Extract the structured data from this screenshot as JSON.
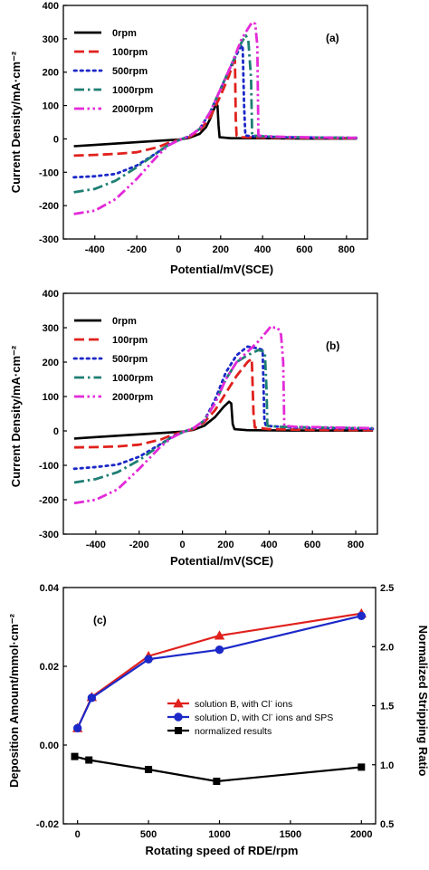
{
  "chart_data": [
    {
      "panel_label": "(a)",
      "type": "line",
      "xlabel": "Potential/mV(SCE)",
      "ylabel": "Current Density/mA·cm⁻²",
      "xlim": [
        -550,
        900
      ],
      "ylim": [
        -300,
        400
      ],
      "xticks": [
        "-400",
        "-200",
        "0",
        "200",
        "400",
        "600",
        "800"
      ],
      "yticks": [
        "-300",
        "-200",
        "-100",
        "0",
        "100",
        "200",
        "300",
        "400"
      ],
      "legend_position": "top-left",
      "series": [
        {
          "name": "0rpm",
          "color": "#000000",
          "dash": "solid",
          "points": [
            [
              -500,
              -22
            ],
            [
              -400,
              -18
            ],
            [
              -300,
              -14
            ],
            [
              -200,
              -10
            ],
            [
              -100,
              -6
            ],
            [
              0,
              -2
            ],
            [
              50,
              3
            ],
            [
              100,
              15
            ],
            [
              130,
              35
            ],
            [
              150,
              60
            ],
            [
              165,
              85
            ],
            [
              178,
              102
            ],
            [
              185,
              100
            ],
            [
              190,
              40
            ],
            [
              195,
              5
            ],
            [
              250,
              2
            ],
            [
              400,
              2
            ],
            [
              600,
              1
            ],
            [
              850,
              1
            ]
          ]
        },
        {
          "name": "100rpm",
          "color": "#e0211d",
          "dash": "long",
          "points": [
            [
              -500,
              -50
            ],
            [
              -400,
              -48
            ],
            [
              -300,
              -45
            ],
            [
              -200,
              -40
            ],
            [
              -100,
              -25
            ],
            [
              -50,
              -12
            ],
            [
              0,
              -3
            ],
            [
              50,
              5
            ],
            [
              100,
              25
            ],
            [
              150,
              65
            ],
            [
              200,
              130
            ],
            [
              240,
              190
            ],
            [
              260,
              230
            ],
            [
              268,
              235
            ],
            [
              272,
              60
            ],
            [
              276,
              10
            ],
            [
              300,
              5
            ],
            [
              500,
              3
            ],
            [
              700,
              2
            ],
            [
              850,
              2
            ]
          ]
        },
        {
          "name": "500rpm",
          "color": "#1c28c8",
          "dash": "dot",
          "points": [
            [
              -500,
              -115
            ],
            [
              -400,
              -112
            ],
            [
              -300,
              -105
            ],
            [
              -200,
              -80
            ],
            [
              -100,
              -40
            ],
            [
              -50,
              -18
            ],
            [
              0,
              -4
            ],
            [
              50,
              8
            ],
            [
              100,
              30
            ],
            [
              150,
              80
            ],
            [
              200,
              150
            ],
            [
              250,
              220
            ],
            [
              290,
              270
            ],
            [
              305,
              280
            ],
            [
              312,
              100
            ],
            [
              318,
              10
            ],
            [
              350,
              8
            ],
            [
              500,
              5
            ],
            [
              700,
              4
            ],
            [
              850,
              3
            ]
          ]
        },
        {
          "name": "1000rpm",
          "color": "#1f7f74",
          "dash": "dashdot",
          "points": [
            [
              -500,
              -160
            ],
            [
              -400,
              -150
            ],
            [
              -300,
              -125
            ],
            [
              -200,
              -85
            ],
            [
              -100,
              -40
            ],
            [
              -50,
              -18
            ],
            [
              0,
              -4
            ],
            [
              50,
              8
            ],
            [
              100,
              30
            ],
            [
              150,
              80
            ],
            [
              200,
              150
            ],
            [
              250,
              220
            ],
            [
              300,
              290
            ],
            [
              320,
              310
            ],
            [
              332,
              295
            ],
            [
              345,
              180
            ],
            [
              350,
              10
            ],
            [
              400,
              8
            ],
            [
              500,
              5
            ],
            [
              700,
              4
            ],
            [
              850,
              3
            ]
          ]
        },
        {
          "name": "2000rpm",
          "color": "#e32ad8",
          "dash": "dashdotdot",
          "points": [
            [
              -500,
              -225
            ],
            [
              -400,
              -215
            ],
            [
              -300,
              -180
            ],
            [
              -200,
              -120
            ],
            [
              -100,
              -50
            ],
            [
              -50,
              -20
            ],
            [
              0,
              -4
            ],
            [
              50,
              8
            ],
            [
              100,
              30
            ],
            [
              150,
              80
            ],
            [
              200,
              150
            ],
            [
              250,
              220
            ],
            [
              300,
              300
            ],
            [
              330,
              330
            ],
            [
              350,
              350
            ],
            [
              365,
              345
            ],
            [
              375,
              280
            ],
            [
              380,
              10
            ],
            [
              420,
              8
            ],
            [
              500,
              6
            ],
            [
              700,
              4
            ],
            [
              850,
              3
            ]
          ]
        }
      ]
    },
    {
      "panel_label": "(b)",
      "type": "line",
      "xlabel": "Potential/mV(SCE)",
      "ylabel": "Current Density/mA·cm⁻²",
      "xlim": [
        -550,
        900
      ],
      "ylim": [
        -300,
        400
      ],
      "xticks": [
        "-400",
        "-200",
        "0",
        "200",
        "400",
        "600",
        "800"
      ],
      "yticks": [
        "-300",
        "-200",
        "-100",
        "0",
        "100",
        "200",
        "300",
        "400"
      ],
      "legend_position": "top-left",
      "series": [
        {
          "name": "0rpm",
          "color": "#000000",
          "dash": "solid",
          "points": [
            [
              -500,
              -22
            ],
            [
              -400,
              -18
            ],
            [
              -300,
              -14
            ],
            [
              -200,
              -10
            ],
            [
              -100,
              -6
            ],
            [
              0,
              -2
            ],
            [
              50,
              3
            ],
            [
              100,
              15
            ],
            [
              150,
              40
            ],
            [
              190,
              70
            ],
            [
              215,
              85
            ],
            [
              225,
              80
            ],
            [
              232,
              20
            ],
            [
              240,
              5
            ],
            [
              300,
              2
            ],
            [
              500,
              1
            ],
            [
              880,
              1
            ]
          ]
        },
        {
          "name": "100rpm",
          "color": "#e0211d",
          "dash": "long",
          "points": [
            [
              -500,
              -48
            ],
            [
              -400,
              -47
            ],
            [
              -300,
              -45
            ],
            [
              -200,
              -40
            ],
            [
              -100,
              -25
            ],
            [
              -50,
              -12
            ],
            [
              0,
              -3
            ],
            [
              50,
              5
            ],
            [
              100,
              25
            ],
            [
              150,
              60
            ],
            [
              200,
              110
            ],
            [
              250,
              160
            ],
            [
              300,
              200
            ],
            [
              320,
              210
            ],
            [
              328,
              50
            ],
            [
              334,
              10
            ],
            [
              400,
              5
            ],
            [
              600,
              3
            ],
            [
              880,
              2
            ]
          ]
        },
        {
          "name": "500rpm",
          "color": "#1c28c8",
          "dash": "dot",
          "points": [
            [
              -500,
              -110
            ],
            [
              -400,
              -105
            ],
            [
              -300,
              -98
            ],
            [
              -200,
              -75
            ],
            [
              -100,
              -38
            ],
            [
              -50,
              -18
            ],
            [
              0,
              -4
            ],
            [
              50,
              8
            ],
            [
              100,
              30
            ],
            [
              150,
              90
            ],
            [
              200,
              170
            ],
            [
              250,
              220
            ],
            [
              300,
              245
            ],
            [
              350,
              240
            ],
            [
              370,
              235
            ],
            [
              378,
              30
            ],
            [
              385,
              15
            ],
            [
              500,
              10
            ],
            [
              700,
              8
            ],
            [
              880,
              6
            ]
          ]
        },
        {
          "name": "1000rpm",
          "color": "#1f7f74",
          "dash": "dashdot",
          "points": [
            [
              -500,
              -150
            ],
            [
              -400,
              -140
            ],
            [
              -300,
              -120
            ],
            [
              -200,
              -85
            ],
            [
              -100,
              -40
            ],
            [
              -50,
              -18
            ],
            [
              0,
              -4
            ],
            [
              50,
              8
            ],
            [
              100,
              30
            ],
            [
              150,
              80
            ],
            [
              200,
              150
            ],
            [
              250,
              200
            ],
            [
              300,
              220
            ],
            [
              350,
              235
            ],
            [
              380,
              230
            ],
            [
              388,
              120
            ],
            [
              392,
              15
            ],
            [
              450,
              12
            ],
            [
              600,
              10
            ],
            [
              880,
              8
            ]
          ]
        },
        {
          "name": "2000rpm",
          "color": "#e32ad8",
          "dash": "dashdotdot",
          "points": [
            [
              -500,
              -210
            ],
            [
              -400,
              -200
            ],
            [
              -300,
              -170
            ],
            [
              -200,
              -110
            ],
            [
              -100,
              -45
            ],
            [
              -50,
              -20
            ],
            [
              0,
              -4
            ],
            [
              50,
              8
            ],
            [
              100,
              30
            ],
            [
              150,
              80
            ],
            [
              200,
              150
            ],
            [
              250,
              200
            ],
            [
              300,
              230
            ],
            [
              350,
              260
            ],
            [
              390,
              290
            ],
            [
              410,
              305
            ],
            [
              425,
              300
            ],
            [
              440,
              300
            ],
            [
              455,
              280
            ],
            [
              465,
              200
            ],
            [
              470,
              15
            ],
            [
              520,
              12
            ],
            [
              700,
              10
            ],
            [
              880,
              8
            ]
          ]
        }
      ]
    },
    {
      "panel_label": "(c)",
      "type": "line",
      "xlabel": "Rotating speed of RDE/rpm",
      "ylabel": "Deposition Amount/mmol·cm⁻²",
      "ylabel_right": "Normalized Stripping Ratio",
      "xlim": [
        -100,
        2100
      ],
      "ylim": [
        -0.02,
        0.04
      ],
      "ylim_right": [
        0.5,
        2.5
      ],
      "xticks": [
        "0",
        "500",
        "1000",
        "1500",
        "2000"
      ],
      "yticks": [
        "-0.02",
        "0.00",
        "0.02",
        "0.04"
      ],
      "yticks_right": [
        "0.5",
        "1.0",
        "1.5",
        "2.0",
        "2.5"
      ],
      "legend_position": "center-right",
      "series": [
        {
          "name": "solution B, with Cl",
          "name_sup": "-",
          "name_tail": " ions",
          "color": "#e0211d",
          "marker": "triangle",
          "axis": "left",
          "points": [
            [
              0,
              0.0043
            ],
            [
              100,
              0.0122
            ],
            [
              500,
              0.0226
            ],
            [
              1000,
              0.0278
            ],
            [
              2000,
              0.0334
            ]
          ]
        },
        {
          "name": "solution D, with Cl",
          "name_sup": "-",
          "name_tail": " ions and SPS",
          "color": "#1c28c8",
          "marker": "circle",
          "axis": "left",
          "points": [
            [
              0,
              0.0043
            ],
            [
              100,
              0.012
            ],
            [
              500,
              0.0218
            ],
            [
              1000,
              0.0242
            ],
            [
              2000,
              0.0328
            ]
          ]
        },
        {
          "name": "normalized results",
          "name_sup": "",
          "name_tail": "",
          "color": "#000000",
          "marker": "square",
          "axis": "right",
          "points": [
            [
              -20,
              1.07
            ],
            [
              80,
              1.04
            ],
            [
              500,
              0.96
            ],
            [
              980,
              0.86
            ],
            [
              2000,
              0.98
            ]
          ]
        }
      ]
    }
  ]
}
